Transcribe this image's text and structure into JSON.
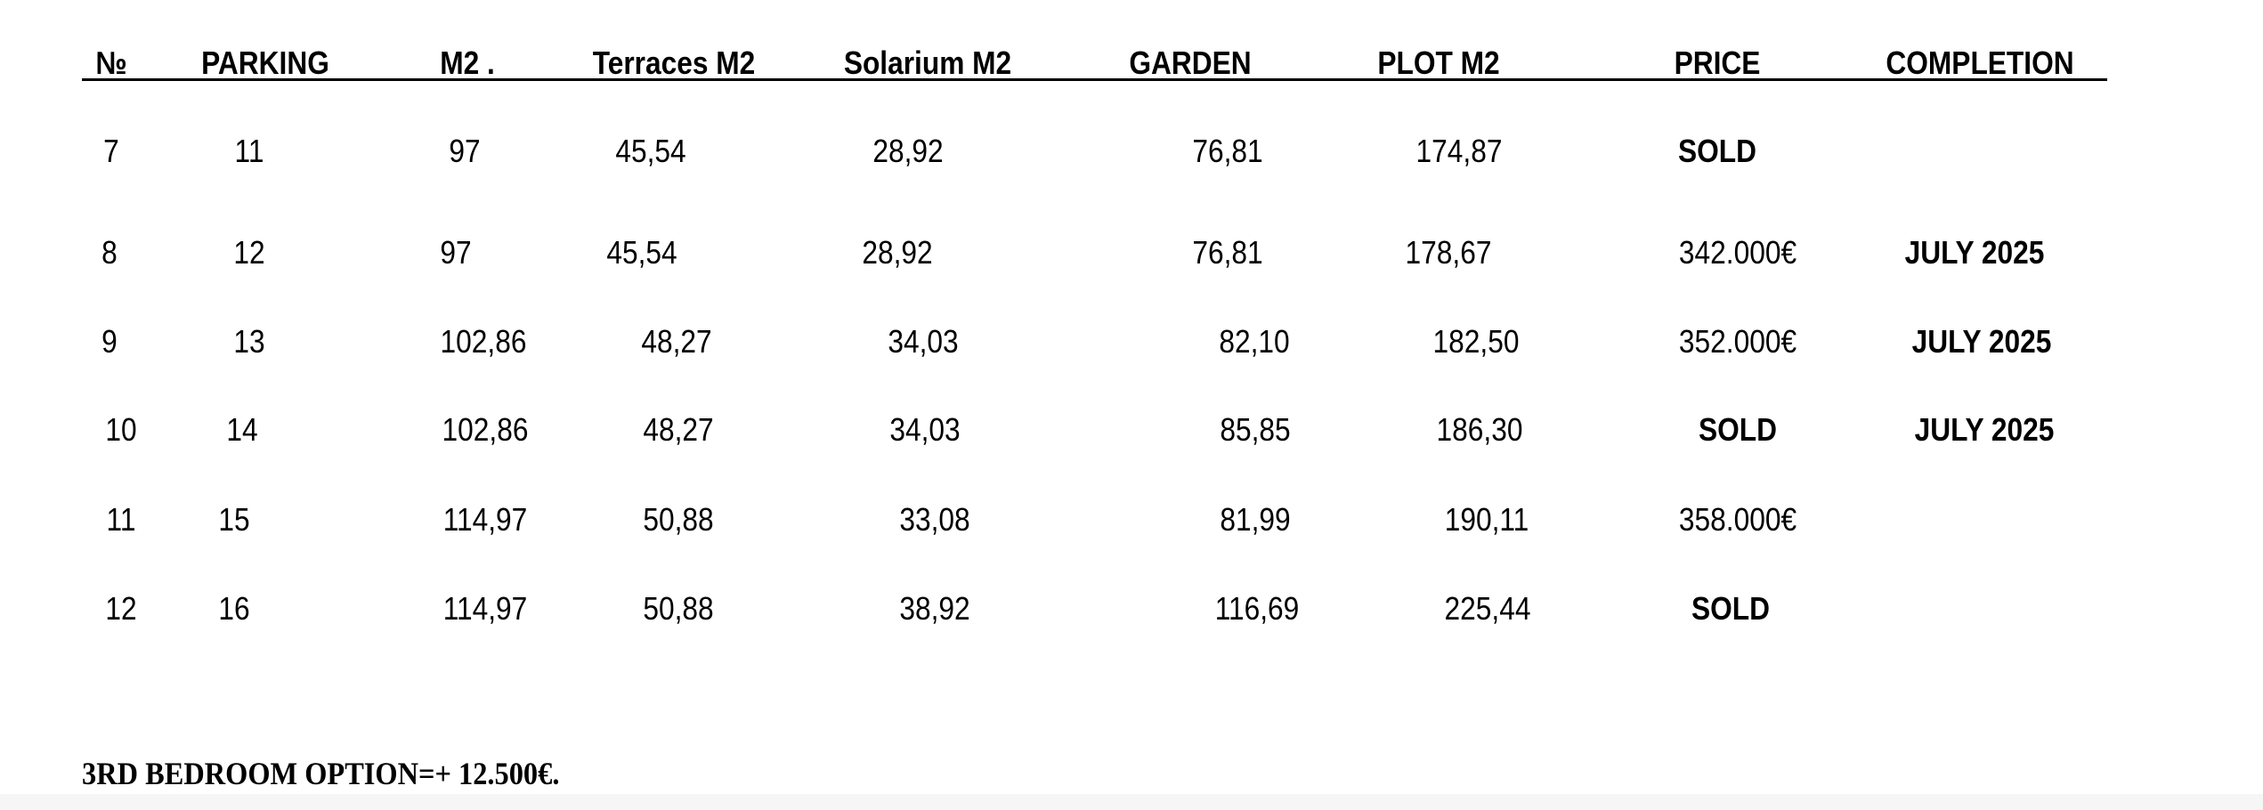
{
  "table": {
    "headers": [
      "№",
      "PARKING",
      "M2 .",
      "Terraces M2",
      "Solarium M2",
      "GARDEN",
      "PLOT M2",
      "PRICE",
      "COMPLETION"
    ],
    "rows": [
      [
        "7",
        "11",
        "97",
        "45,54",
        "28,92",
        "76,81",
        "174,87",
        "SOLD",
        ""
      ],
      [
        "8",
        "12",
        "97",
        "45,54",
        "28,92",
        "76,81",
        "178,67",
        "342.000€",
        "JULY 2025"
      ],
      [
        "9",
        "13",
        "102,86",
        "48,27",
        "34,03",
        "82,10",
        "182,50",
        "352.000€",
        "JULY 2025"
      ],
      [
        "10",
        "14",
        "102,86",
        "48,27",
        "34,03",
        "85,85",
        "186,30",
        "SOLD",
        "JULY 2025"
      ],
      [
        "11",
        "15",
        "114,97",
        "50,88",
        "33,08",
        "81,99",
        "190,11",
        "358.000€",
        ""
      ],
      [
        "12",
        "16",
        "114,97",
        "50,88",
        "38,92",
        "116,69",
        "225,44",
        "SOLD",
        ""
      ]
    ]
  },
  "note": "3RD BEDROOM OPTION=+ 12.500€."
}
